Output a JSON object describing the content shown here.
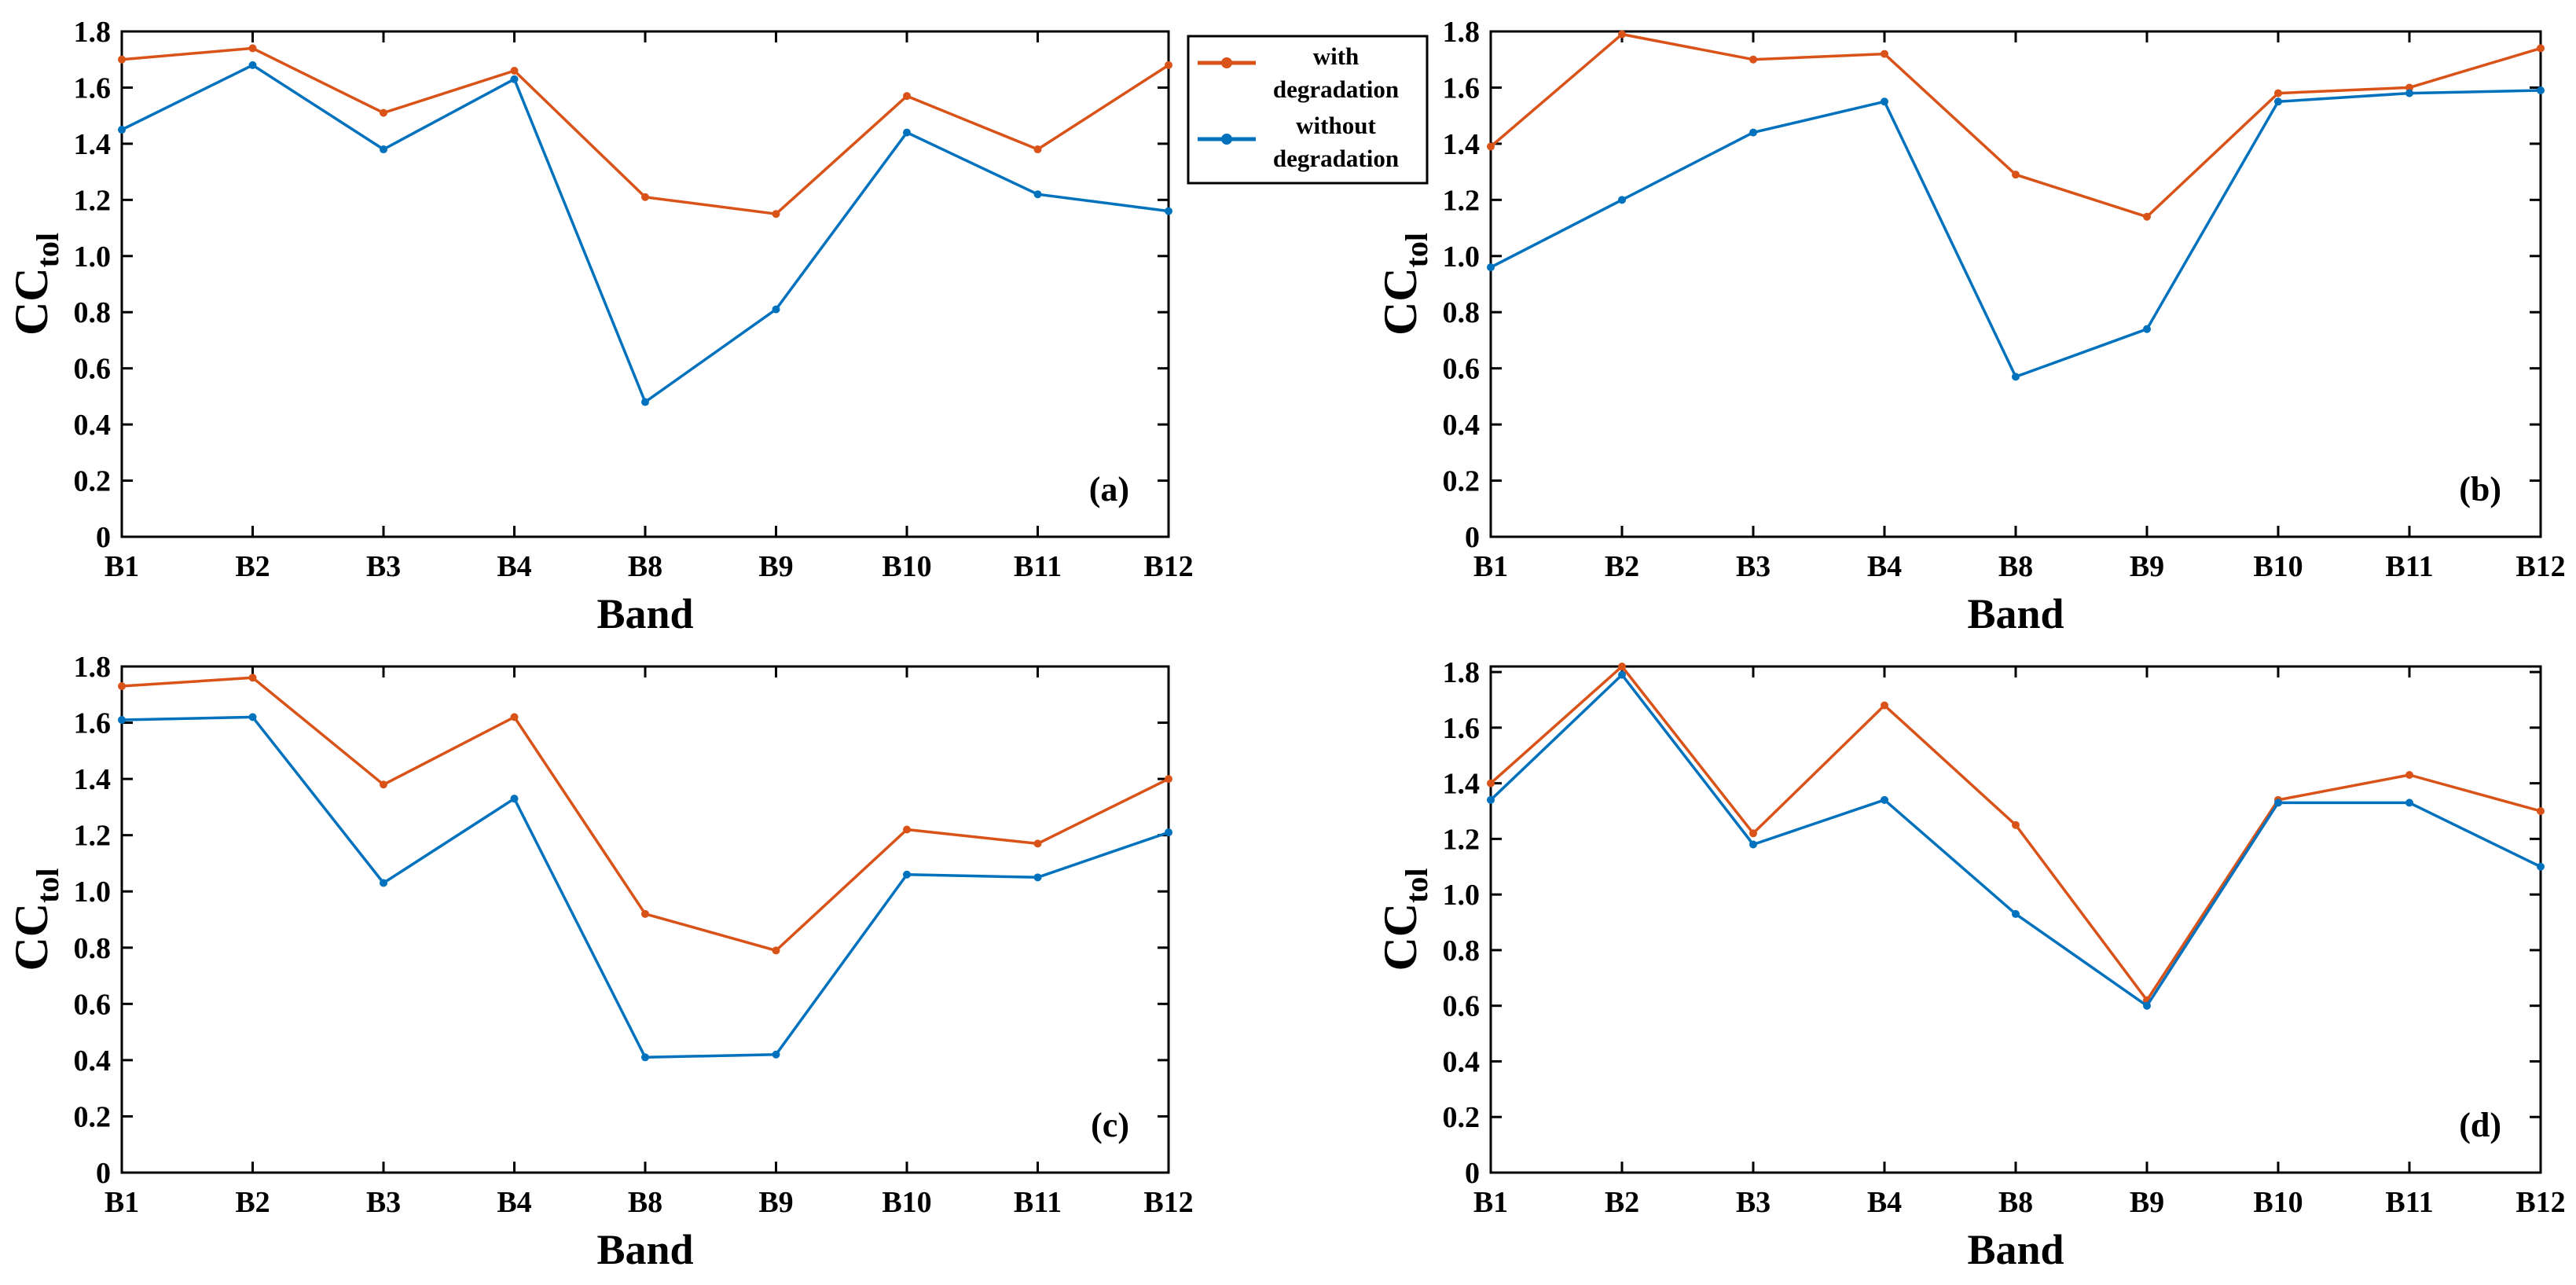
{
  "colors": {
    "with": "#D95319",
    "without": "#0072BD"
  },
  "legend": {
    "with_line1": "with",
    "with_line2": "degradation",
    "without_line1": "without",
    "without_line2": "degradation"
  },
  "chart_data": [
    {
      "type": "line",
      "panel": "(a)",
      "categories": [
        "B1",
        "B2",
        "B3",
        "B4",
        "B8",
        "B9",
        "B10",
        "B11",
        "B12"
      ],
      "xlabel": "Band",
      "ylabel_main": "CC",
      "ylabel_sub": "tol",
      "ylim": [
        0,
        1.8
      ],
      "yticks": [
        "0",
        "0.2",
        "0.4",
        "0.6",
        "0.8",
        "1.0",
        "1.2",
        "1.4",
        "1.6",
        "1.8"
      ],
      "series": [
        {
          "name": "with degradation",
          "values": [
            1.7,
            1.74,
            1.51,
            1.66,
            1.21,
            1.15,
            1.57,
            1.38,
            1.68
          ]
        },
        {
          "name": "without degradation",
          "values": [
            1.45,
            1.68,
            1.38,
            1.63,
            0.48,
            0.81,
            1.44,
            1.22,
            1.16
          ]
        }
      ]
    },
    {
      "type": "line",
      "panel": "(b)",
      "categories": [
        "B1",
        "B2",
        "B3",
        "B4",
        "B8",
        "B9",
        "B10",
        "B11",
        "B12"
      ],
      "xlabel": "Band",
      "ylabel_main": "CC",
      "ylabel_sub": "tol",
      "ylim": [
        0,
        1.8
      ],
      "yticks": [
        "0",
        "0.2",
        "0.4",
        "0.6",
        "0.8",
        "1.0",
        "1.2",
        "1.4",
        "1.6",
        "1.8"
      ],
      "series": [
        {
          "name": "with degradation",
          "values": [
            1.39,
            1.79,
            1.7,
            1.72,
            1.29,
            1.14,
            1.58,
            1.6,
            1.74
          ]
        },
        {
          "name": "without degradation",
          "values": [
            0.96,
            1.2,
            1.44,
            1.55,
            0.57,
            0.74,
            1.55,
            1.58,
            1.59
          ]
        }
      ]
    },
    {
      "type": "line",
      "panel": "(c)",
      "categories": [
        "B1",
        "B2",
        "B3",
        "B4",
        "B8",
        "B9",
        "B10",
        "B11",
        "B12"
      ],
      "xlabel": "Band",
      "ylabel_main": "CC",
      "ylabel_sub": "tol",
      "ylim": [
        0,
        1.8
      ],
      "yticks": [
        "0",
        "0.2",
        "0.4",
        "0.6",
        "0.8",
        "1.0",
        "1.2",
        "1.4",
        "1.6",
        "1.8"
      ],
      "series": [
        {
          "name": "with degradation",
          "values": [
            1.73,
            1.76,
            1.38,
            1.62,
            0.92,
            0.79,
            1.22,
            1.17,
            1.4
          ]
        },
        {
          "name": "without degradation",
          "values": [
            1.61,
            1.62,
            1.03,
            1.33,
            0.41,
            0.42,
            1.06,
            1.05,
            1.21
          ]
        }
      ]
    },
    {
      "type": "line",
      "panel": "(d)",
      "categories": [
        "B1",
        "B2",
        "B3",
        "B4",
        "B8",
        "B9",
        "B10",
        "B11",
        "B12"
      ],
      "xlabel": "Band",
      "ylabel_main": "CC",
      "ylabel_sub": "tol",
      "ylim": [
        0,
        1.82
      ],
      "yticks": [
        "0",
        "0.2",
        "0.4",
        "0.6",
        "0.8",
        "1.0",
        "1.2",
        "1.4",
        "1.6",
        "1.8"
      ],
      "series": [
        {
          "name": "with degradation",
          "values": [
            1.4,
            1.82,
            1.22,
            1.68,
            1.25,
            0.62,
            1.34,
            1.43,
            1.3
          ]
        },
        {
          "name": "without degradation",
          "values": [
            1.34,
            1.79,
            1.18,
            1.34,
            0.93,
            0.6,
            1.33,
            1.33,
            1.1
          ]
        }
      ]
    }
  ]
}
